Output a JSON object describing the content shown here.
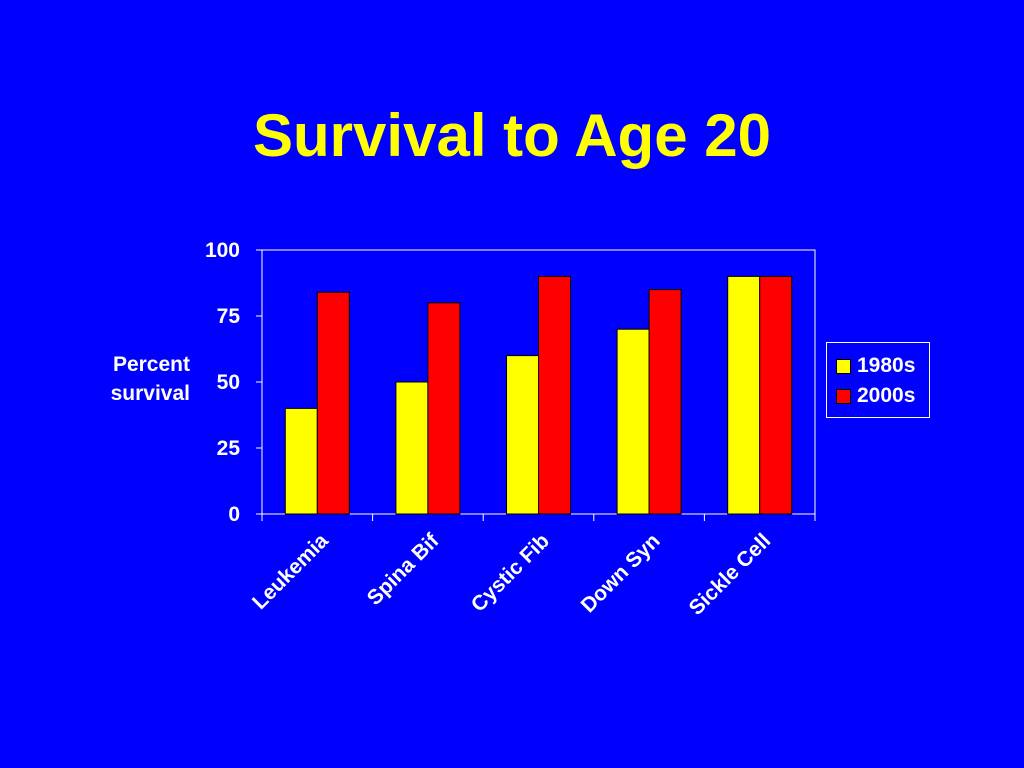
{
  "slide": {
    "title": "Survival to Age 20"
  },
  "chart_data": {
    "type": "bar",
    "title": "",
    "xlabel": "",
    "ylabel": "Percent survival",
    "ylim": [
      0,
      100
    ],
    "yticks": [
      0,
      25,
      50,
      75,
      100
    ],
    "categories": [
      "Leukemia",
      "Spina Bif",
      "Cystic Fib",
      "Down Syn",
      "Sickle Cell"
    ],
    "series": [
      {
        "name": "1980s",
        "values": [
          40,
          50,
          60,
          70,
          90
        ],
        "color": "#FFFF00"
      },
      {
        "name": "2000s",
        "values": [
          84,
          80,
          90,
          85,
          90
        ],
        "color": "#FF0000"
      }
    ],
    "grid": false,
    "legend_position": "right"
  },
  "colors": {
    "background": "#0000FF",
    "title": "#FFFF00",
    "text": "#FFFFFF"
  }
}
